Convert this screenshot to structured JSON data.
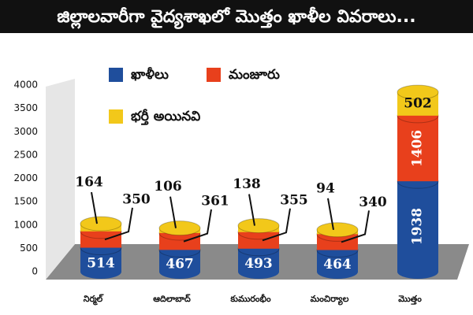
{
  "chart_data": {
    "type": "bar",
    "stacked": true,
    "title": "జిల్లాలవారీగా వైద్యశాఖలో మొత్తం ఖాళీల వివరాలు...",
    "categories": [
      "నిర్మల్",
      "ఆదిలాబాద్",
      "కుమురంభీం",
      "మంచిర్యాల",
      "మొత్తం"
    ],
    "series": [
      {
        "name": "ఖాళీలు",
        "color": "#1f4e9c",
        "values": [
          514,
          467,
          493,
          464,
          1938
        ]
      },
      {
        "name": "మంజూరు",
        "color": "#e8401c",
        "values": [
          350,
          361,
          355,
          340,
          1406
        ]
      },
      {
        "name": "భర్తీ అయినవి",
        "color": "#f2c81a",
        "values": [
          164,
          106,
          138,
          94,
          502
        ]
      }
    ],
    "ylim": [
      0,
      4000
    ],
    "yticks": [
      0,
      500,
      1000,
      1500,
      2000,
      2500,
      3000,
      3500,
      4000
    ]
  }
}
